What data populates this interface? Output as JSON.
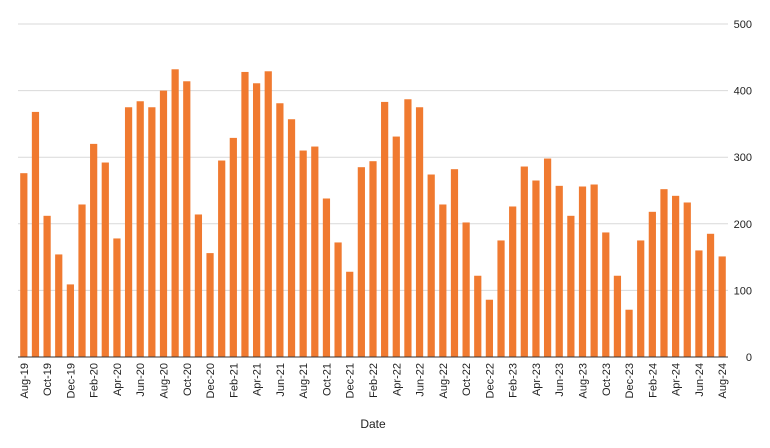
{
  "chart_data": {
    "type": "bar",
    "xlabel": "Date",
    "ylabel": "",
    "ylim": [
      0,
      500
    ],
    "yticks": [
      0,
      100,
      200,
      300,
      400,
      500
    ],
    "y_axis_side": "right",
    "grid": true,
    "bar_color": "#f07a30",
    "categories": [
      "Aug-19",
      "Sep-19",
      "Oct-19",
      "Nov-19",
      "Dec-19",
      "Jan-20",
      "Feb-20",
      "Mar-20",
      "Apr-20",
      "May-20",
      "Jun-20",
      "Jul-20",
      "Aug-20",
      "Sep-20",
      "Oct-20",
      "Nov-20",
      "Dec-20",
      "Jan-21",
      "Feb-21",
      "Mar-21",
      "Apr-21",
      "May-21",
      "Jun-21",
      "Jul-21",
      "Aug-21",
      "Sep-21",
      "Oct-21",
      "Nov-21",
      "Dec-21",
      "Jan-22",
      "Feb-22",
      "Mar-22",
      "Apr-22",
      "May-22",
      "Jun-22",
      "Jul-22",
      "Aug-22",
      "Sep-22",
      "Oct-22",
      "Nov-22",
      "Dec-22",
      "Jan-23",
      "Feb-23",
      "Mar-23",
      "Apr-23",
      "May-23",
      "Jun-23",
      "Jul-23",
      "Aug-23",
      "Sep-23",
      "Oct-23",
      "Nov-23",
      "Dec-23",
      "Jan-24",
      "Feb-24",
      "Mar-24",
      "Apr-24",
      "May-24",
      "Jun-24",
      "Jul-24",
      "Aug-24"
    ],
    "x_tick_labels": [
      "Aug-19",
      "",
      "Oct-19",
      "",
      "Dec-19",
      "",
      "Feb-20",
      "",
      "Apr-20",
      "",
      "Jun-20",
      "",
      "Aug-20",
      "",
      "Oct-20",
      "",
      "Dec-20",
      "",
      "Feb-21",
      "",
      "Apr-21",
      "",
      "Jun-21",
      "",
      "Aug-21",
      "",
      "Oct-21",
      "",
      "Dec-21",
      "",
      "Feb-22",
      "",
      "Apr-22",
      "",
      "Jun-22",
      "",
      "Aug-22",
      "",
      "Oct-22",
      "",
      "Dec-22",
      "",
      "Feb-23",
      "",
      "Apr-23",
      "",
      "Jun-23",
      "",
      "Aug-23",
      "",
      "Oct-23",
      "",
      "Dec-23",
      "",
      "Feb-24",
      "",
      "Apr-24",
      "",
      "Jun-24",
      "",
      "Aug-24"
    ],
    "values": [
      276,
      368,
      212,
      154,
      109,
      229,
      320,
      292,
      178,
      375,
      384,
      375,
      400,
      432,
      414,
      214,
      156,
      295,
      329,
      428,
      411,
      429,
      381,
      357,
      310,
      316,
      238,
      172,
      128,
      285,
      294,
      383,
      331,
      387,
      375,
      274,
      229,
      282,
      202,
      122,
      86,
      175,
      226,
      286,
      265,
      298,
      257,
      212,
      256,
      259,
      187,
      122,
      71,
      175,
      218,
      252,
      242,
      232,
      160,
      185,
      151
    ]
  }
}
